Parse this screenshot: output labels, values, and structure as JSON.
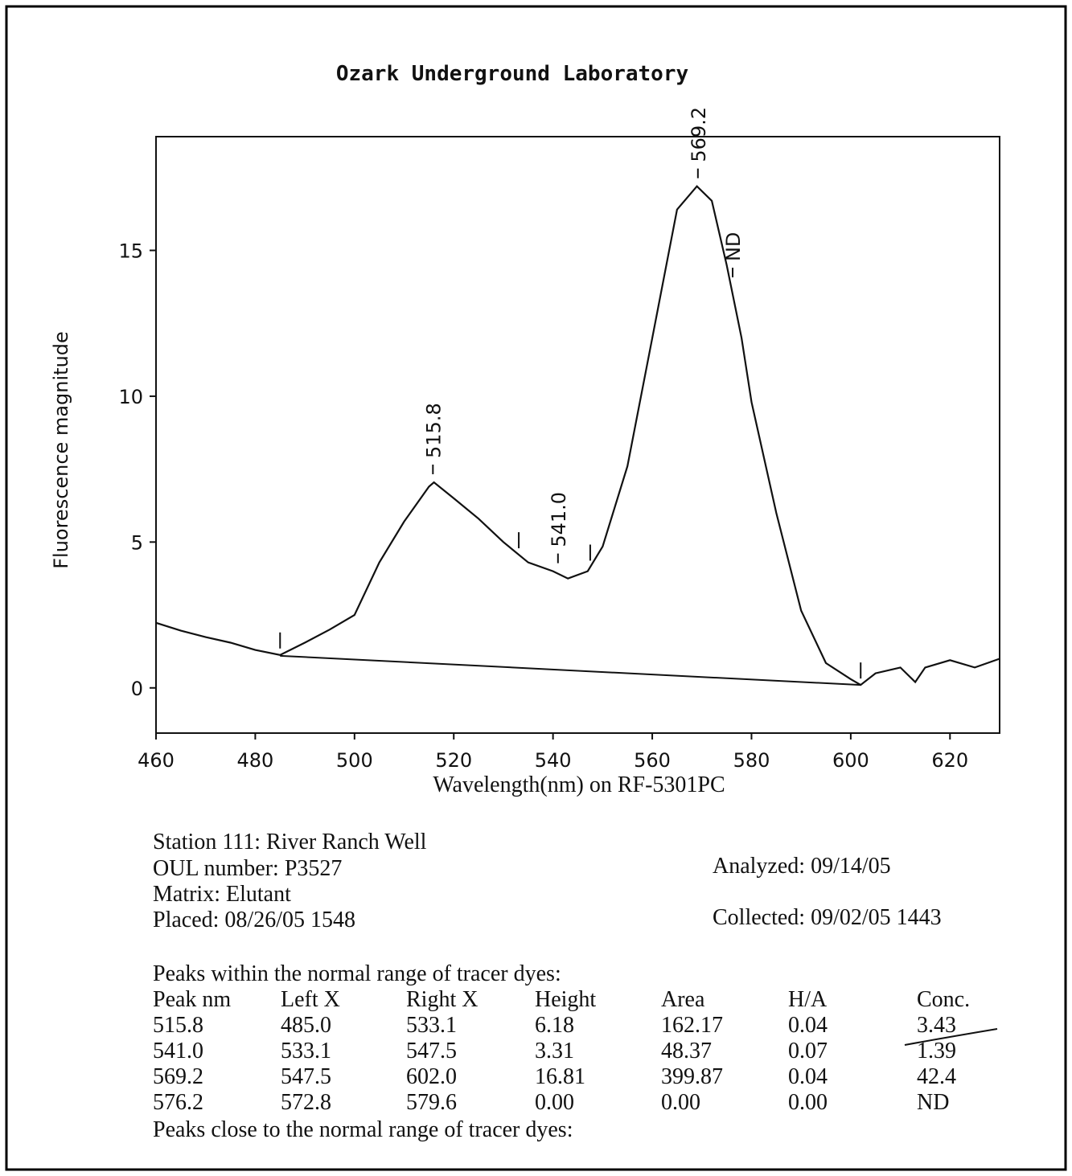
{
  "chart_data": {
    "type": "line",
    "title": "Ozark Underground Laboratory",
    "y_label": "Fluorescence magnitude",
    "x_label": "Wavelength(nm) on RF-5301PC",
    "xlim": [
      460,
      630
    ],
    "ylim": [
      -1.55,
      18.9
    ],
    "xticks": [
      460,
      480,
      500,
      520,
      540,
      560,
      580,
      600,
      620
    ],
    "yticks": [
      0,
      5,
      10,
      15
    ],
    "color": "#111111",
    "x": [
      460,
      465,
      470,
      475,
      480,
      485,
      490,
      495,
      500,
      505,
      510,
      515,
      516,
      520,
      525,
      530,
      535,
      540,
      543,
      547,
      550,
      555,
      560,
      565,
      569,
      572,
      575,
      578,
      580,
      585,
      590,
      595,
      600,
      602,
      605,
      610,
      613,
      615,
      620,
      625,
      630
    ],
    "values": [
      2.23,
      1.96,
      1.74,
      1.55,
      1.3,
      1.13,
      1.55,
      2.0,
      2.5,
      4.3,
      5.7,
      6.9,
      7.05,
      6.5,
      5.8,
      5.0,
      4.3,
      4.0,
      3.75,
      4.0,
      4.85,
      7.6,
      12.0,
      16.4,
      17.2,
      16.7,
      14.5,
      12.0,
      9.8,
      6.0,
      2.65,
      0.85,
      0.3,
      0.1,
      0.5,
      0.7,
      0.2,
      0.7,
      0.95,
      0.7,
      1.0
    ],
    "baseline": {
      "x": [
        485,
        602
      ],
      "values": [
        1.1,
        0.1
      ]
    },
    "markers": [
      485,
      533.1,
      547.5,
      602
    ],
    "annotations": [
      {
        "text": "515.8",
        "x": 515.8,
        "y": 7.05
      },
      {
        "text": "541.0",
        "x": 541.0,
        "y": 4.0
      },
      {
        "text": "569.2",
        "x": 569.2,
        "y": 17.2
      },
      {
        "text": "ND",
        "x": 576.2,
        "y": 13.8
      }
    ]
  },
  "info": {
    "station": "Station 111: River Ranch Well",
    "oul": "OUL number: P3527",
    "matrix": "Matrix: Elutant",
    "placed": "Placed: 08/26/05 1548",
    "analyzed": "Analyzed: 09/14/05",
    "collected": "Collected: 09/02/05 1443"
  },
  "table": {
    "caption": "Peaks within the normal range of tracer dyes:",
    "headers": [
      "Peak nm",
      "Left X",
      "Right X",
      "Height",
      "Area",
      "H/A",
      "Conc."
    ],
    "rows": [
      [
        "515.8",
        "485.0",
        "533.1",
        "6.18",
        "162.17",
        "0.04",
        "3.43"
      ],
      [
        "541.0",
        "533.1",
        "547.5",
        "3.31",
        "48.37",
        "0.07",
        "1.39"
      ],
      [
        "569.2",
        "547.5",
        "602.0",
        "16.81",
        "399.87",
        "0.04",
        "42.4"
      ],
      [
        "576.2",
        "572.8",
        "579.6",
        "0.00",
        "0.00",
        "0.00",
        "ND"
      ]
    ],
    "footer": "Peaks close to the normal range of tracer dyes:"
  }
}
